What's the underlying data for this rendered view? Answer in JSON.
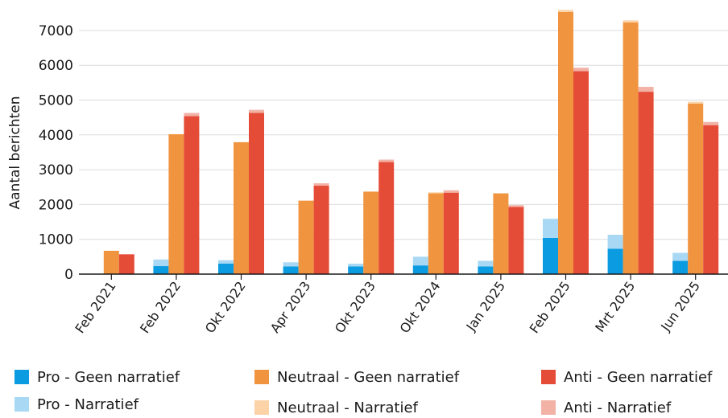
{
  "chart_data": {
    "type": "bar",
    "stacked_within_group": true,
    "title": "",
    "xlabel": "",
    "ylabel": "Aantal berichten",
    "ylim": [
      0,
      7600
    ],
    "yticks": [
      0,
      1000,
      2000,
      3000,
      4000,
      5000,
      6000,
      7000
    ],
    "grid": true,
    "legend_position": "bottom",
    "categories": [
      "Feb 2021",
      "Feb 2022",
      "Okt 2022",
      "Apr 2023",
      "Okt 2023",
      "Okt 2024",
      "Jan 2025",
      "Feb 2025",
      "Mrt 2025",
      "Jun 2025"
    ],
    "groups": [
      {
        "name": "Pro",
        "series": [
          {
            "name": "Pro - Geen narratief",
            "color": "#0a9be0",
            "values": [
              0,
              230,
              300,
              220,
              220,
              250,
              220,
              1040,
              730,
              380
            ]
          },
          {
            "name": "Pro - Narratief",
            "color": "#a8d8f4",
            "values": [
              0,
              190,
              100,
              120,
              80,
              250,
              160,
              550,
              400,
              230
            ]
          }
        ]
      },
      {
        "name": "Neutraal",
        "series": [
          {
            "name": "Neutraal - Geen narratief",
            "color": "#f0943f",
            "values": [
              670,
              4020,
              3790,
              2110,
              2370,
              2320,
              2320,
              7530,
              7230,
              4900
            ]
          },
          {
            "name": "Neutraal - Narratief",
            "color": "#fbd3a7",
            "values": [
              0,
              0,
              0,
              0,
              0,
              30,
              0,
              60,
              60,
              50
            ]
          }
        ]
      },
      {
        "name": "Anti",
        "series": [
          {
            "name": "Anti - Geen narratief",
            "color": "#e54c38",
            "values": [
              570,
              4540,
              4630,
              2540,
              3220,
              2340,
              1930,
              5830,
              5240,
              4280
            ]
          },
          {
            "name": "Anti - Narratief",
            "color": "#f2b2a6",
            "values": [
              0,
              90,
              90,
              70,
              70,
              70,
              50,
              100,
              140,
              90
            ]
          }
        ]
      }
    ]
  },
  "legend": {
    "items": [
      {
        "label": "Pro - Geen narratief",
        "color": "#0a9be0"
      },
      {
        "label": "Neutraal - Geen narratief",
        "color": "#f0943f"
      },
      {
        "label": "Anti - Geen narratief",
        "color": "#e54c38"
      },
      {
        "label": "Pro - Narratief",
        "color": "#a8d8f4"
      },
      {
        "label": "Neutraal - Narratief",
        "color": "#fbd3a7"
      },
      {
        "label": "Anti - Narratief",
        "color": "#f2b2a6"
      }
    ]
  }
}
